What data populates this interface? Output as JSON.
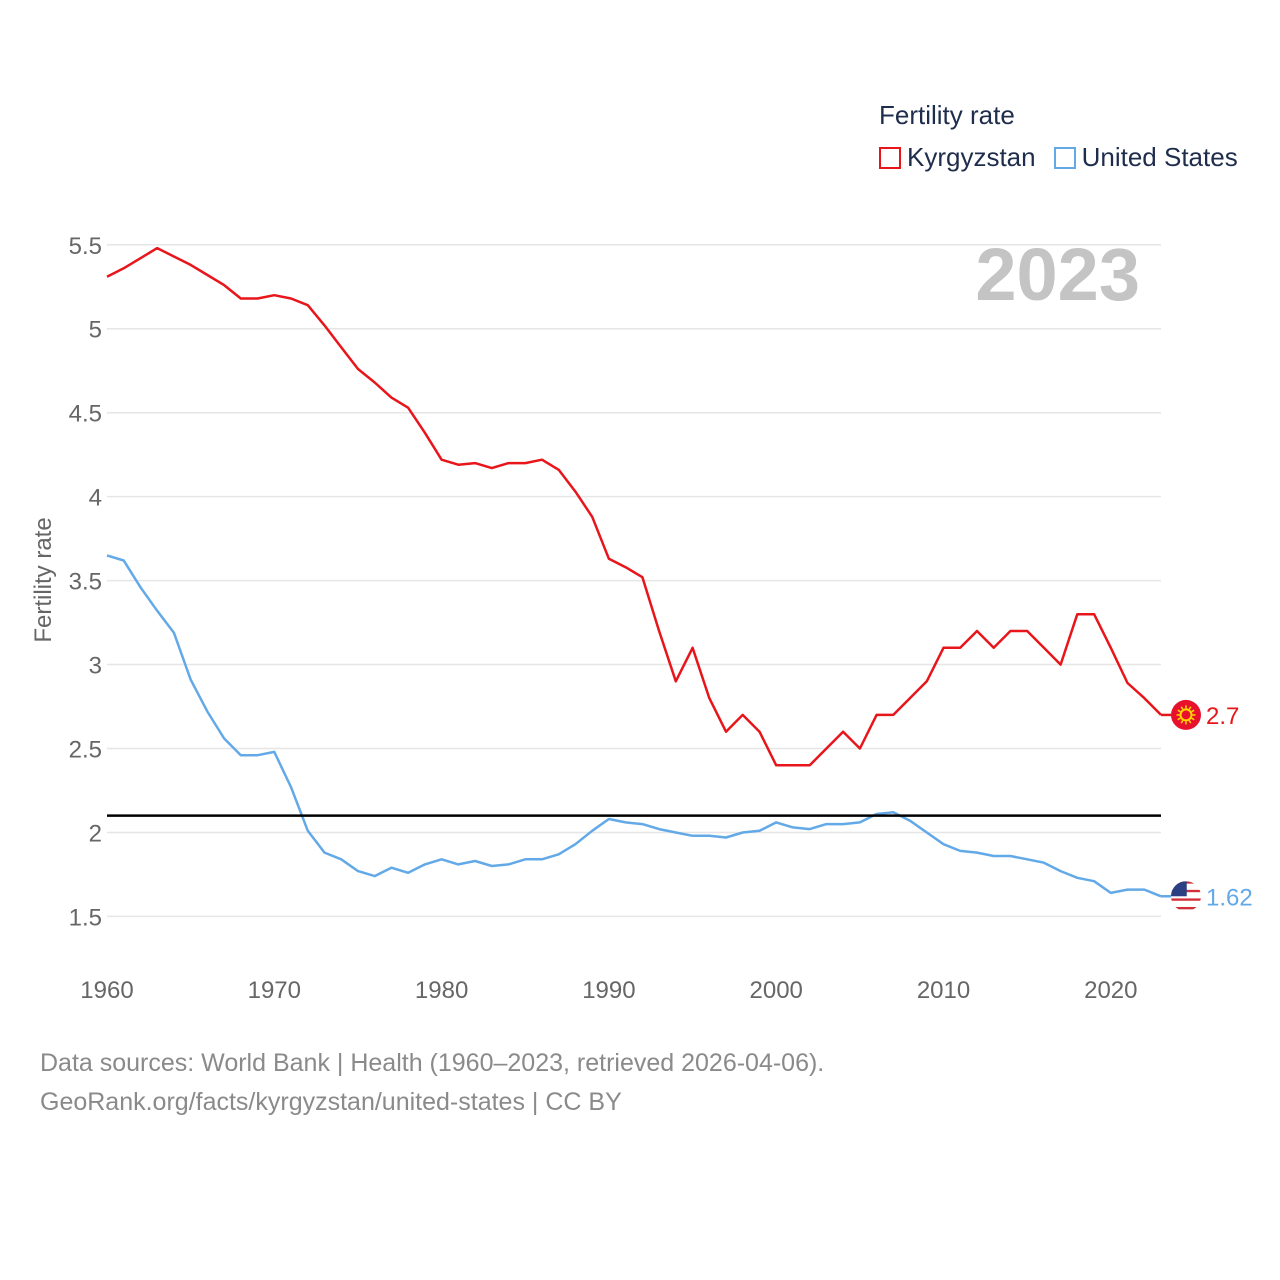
{
  "legend": {
    "title": "Fertility rate",
    "items": [
      {
        "label": "Kyrgyzstan",
        "color": "#e8151b"
      },
      {
        "label": "United States",
        "color": "#63a9e7"
      }
    ]
  },
  "footer": {
    "line1": "Data sources: World Bank | Health (1960–2023, retrieved 2026-04-06).",
    "line2": "GeoRank.org/facts/kyrgyzstan/united-states | CC BY"
  },
  "chart_data": {
    "type": "line",
    "title": "",
    "year_label": "2023",
    "xlabel": "",
    "ylabel": "Fertility rate",
    "xlim": [
      1960,
      2023
    ],
    "ylim": [
      1.3,
      5.6
    ],
    "xticks": [
      1960,
      1970,
      1980,
      1990,
      2000,
      2010,
      2020
    ],
    "yticks": [
      1.5,
      2,
      2.5,
      3,
      3.5,
      4,
      4.5,
      5,
      5.5
    ],
    "grid": true,
    "reference_line": 2.1,
    "x": [
      1960,
      1961,
      1962,
      1963,
      1964,
      1965,
      1966,
      1967,
      1968,
      1969,
      1970,
      1971,
      1972,
      1973,
      1974,
      1975,
      1976,
      1977,
      1978,
      1979,
      1980,
      1981,
      1982,
      1983,
      1984,
      1985,
      1986,
      1987,
      1988,
      1989,
      1990,
      1991,
      1992,
      1993,
      1994,
      1995,
      1996,
      1997,
      1998,
      1999,
      2000,
      2001,
      2002,
      2003,
      2004,
      2005,
      2006,
      2007,
      2008,
      2009,
      2010,
      2011,
      2012,
      2013,
      2014,
      2015,
      2016,
      2017,
      2018,
      2019,
      2020,
      2021,
      2022,
      2023
    ],
    "series": [
      {
        "name": "Kyrgyzstan",
        "color": "#e8151b",
        "end_label": "2.7",
        "values": [
          5.31,
          5.36,
          5.42,
          5.48,
          5.43,
          5.38,
          5.32,
          5.26,
          5.18,
          5.18,
          5.2,
          5.18,
          5.14,
          5.02,
          4.89,
          4.76,
          4.68,
          4.59,
          4.53,
          4.38,
          4.22,
          4.19,
          4.2,
          4.17,
          4.2,
          4.2,
          4.22,
          4.16,
          4.03,
          3.88,
          3.63,
          3.58,
          3.52,
          3.2,
          2.9,
          3.1,
          2.8,
          2.6,
          2.7,
          2.6,
          2.4,
          2.4,
          2.4,
          2.5,
          2.6,
          2.5,
          2.7,
          2.7,
          2.8,
          2.9,
          3.1,
          3.1,
          3.2,
          3.1,
          3.2,
          3.2,
          3.1,
          3.0,
          3.3,
          3.3,
          3.1,
          2.89,
          2.8,
          2.7
        ]
      },
      {
        "name": "United States",
        "color": "#63a9e7",
        "end_label": "1.62",
        "values": [
          3.65,
          3.62,
          3.46,
          3.32,
          3.19,
          2.91,
          2.72,
          2.56,
          2.46,
          2.46,
          2.48,
          2.27,
          2.01,
          1.88,
          1.84,
          1.77,
          1.74,
          1.79,
          1.76,
          1.81,
          1.84,
          1.81,
          1.83,
          1.8,
          1.81,
          1.84,
          1.84,
          1.87,
          1.93,
          2.01,
          2.08,
          2.06,
          2.05,
          2.02,
          2.0,
          1.98,
          1.98,
          1.97,
          2.0,
          2.01,
          2.06,
          2.03,
          2.02,
          2.05,
          2.05,
          2.06,
          2.11,
          2.12,
          2.07,
          2.0,
          1.93,
          1.89,
          1.88,
          1.86,
          1.86,
          1.84,
          1.82,
          1.77,
          1.73,
          1.71,
          1.64,
          1.66,
          1.66,
          1.62
        ]
      }
    ]
  }
}
